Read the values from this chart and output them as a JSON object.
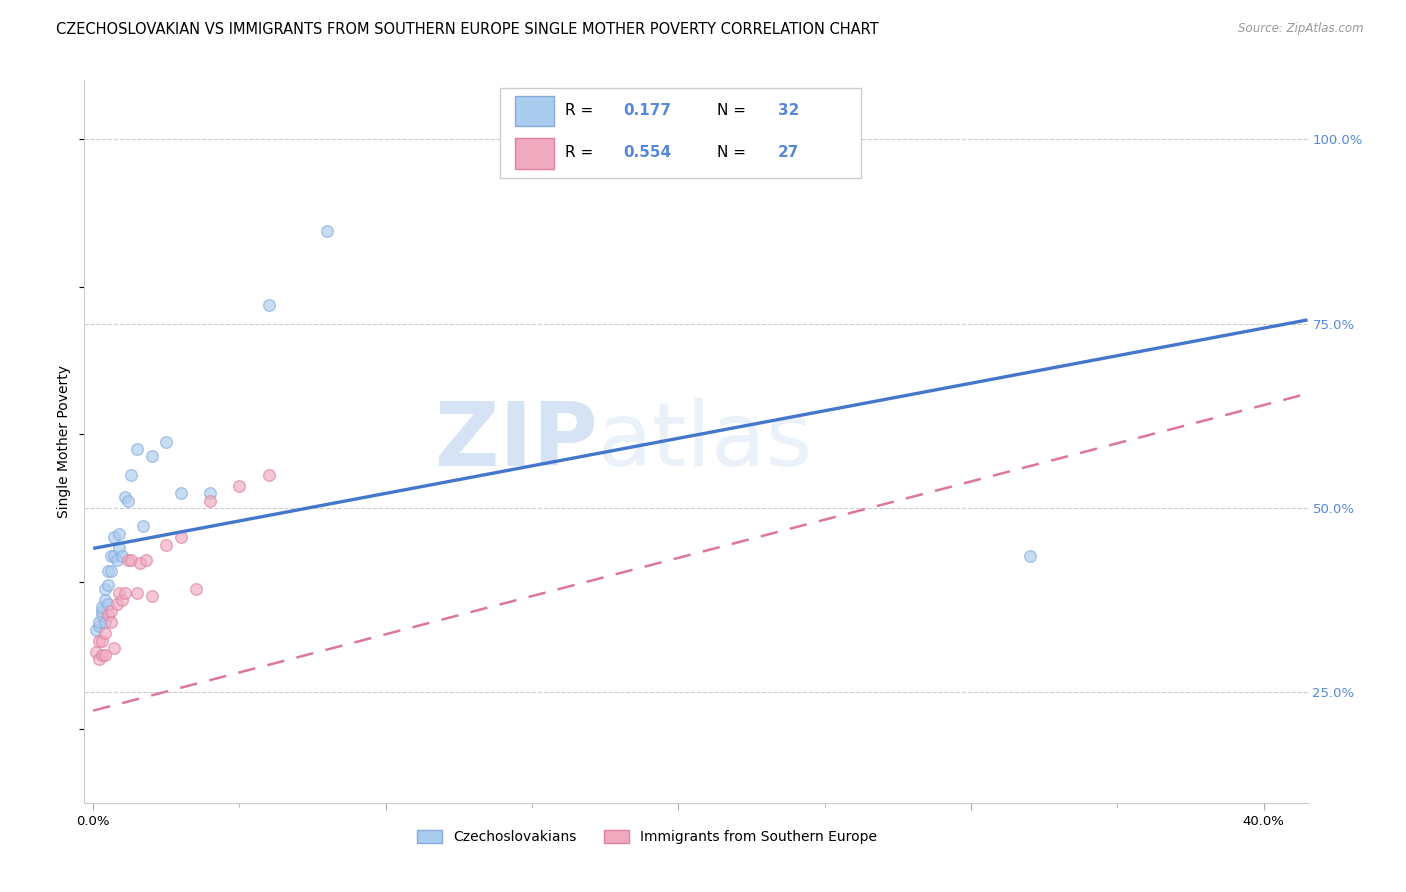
{
  "title": "CZECHOSLOVAKIAN VS IMMIGRANTS FROM SOUTHERN EUROPE SINGLE MOTHER POVERTY CORRELATION CHART",
  "source": "Source: ZipAtlas.com",
  "ylabel": "Single Mother Poverty",
  "xlim": [
    -0.003,
    0.415
  ],
  "ylim": [
    0.1,
    1.08
  ],
  "xlabel_tick_vals": [
    0.0,
    0.1,
    0.2,
    0.3,
    0.4
  ],
  "xlabel_tick_labels": [
    "0.0%",
    "",
    "",
    "",
    "40.0%"
  ],
  "ylabel_tick_vals": [
    0.25,
    0.5,
    0.75,
    1.0
  ],
  "ylabel_tick_labels": [
    "25.0%",
    "50.0%",
    "75.0%",
    "100.0%"
  ],
  "blue_r": 0.177,
  "blue_n": 32,
  "pink_r": 0.554,
  "pink_n": 27,
  "blue_color": "#aaccee",
  "pink_color": "#f0aabf",
  "blue_edge_color": "#88aadd",
  "pink_edge_color": "#e080a0",
  "blue_line_color": "#4477cc",
  "pink_line_color": "#dd7799",
  "watermark_zip_color": "#c5d8f0",
  "watermark_atlas_color": "#c5d8f0",
  "legend_label_blue": "Czechoslovakians",
  "legend_label_pink": "Immigrants from Southern Europe",
  "grid_color": "#cccccc",
  "right_tick_color": "#5588dd",
  "blue_x": [
    0.001,
    0.002,
    0.002,
    0.003,
    0.003,
    0.003,
    0.004,
    0.004,
    0.004,
    0.005,
    0.005,
    0.005,
    0.006,
    0.006,
    0.007,
    0.007,
    0.008,
    0.009,
    0.009,
    0.01,
    0.011,
    0.012,
    0.013,
    0.015,
    0.017,
    0.02,
    0.025,
    0.03,
    0.04,
    0.06,
    0.08,
    0.32
  ],
  "blue_y": [
    0.335,
    0.34,
    0.345,
    0.355,
    0.36,
    0.365,
    0.345,
    0.375,
    0.39,
    0.37,
    0.395,
    0.415,
    0.415,
    0.435,
    0.435,
    0.46,
    0.43,
    0.445,
    0.465,
    0.435,
    0.515,
    0.51,
    0.545,
    0.58,
    0.475,
    0.57,
    0.59,
    0.52,
    0.52,
    0.775,
    0.875,
    0.435
  ],
  "pink_x": [
    0.001,
    0.002,
    0.002,
    0.003,
    0.003,
    0.004,
    0.004,
    0.005,
    0.006,
    0.006,
    0.007,
    0.008,
    0.009,
    0.01,
    0.011,
    0.012,
    0.013,
    0.015,
    0.016,
    0.018,
    0.02,
    0.025,
    0.03,
    0.035,
    0.04,
    0.05,
    0.06
  ],
  "pink_y": [
    0.305,
    0.295,
    0.32,
    0.3,
    0.32,
    0.3,
    0.33,
    0.355,
    0.345,
    0.36,
    0.31,
    0.37,
    0.385,
    0.375,
    0.385,
    0.43,
    0.43,
    0.385,
    0.425,
    0.43,
    0.38,
    0.45,
    0.46,
    0.39,
    0.51,
    0.53,
    0.545
  ],
  "blue_line_x0": 0.0,
  "blue_line_y0": 0.445,
  "blue_line_x1": 0.415,
  "blue_line_y1": 0.755,
  "pink_line_x0": 0.0,
  "pink_line_y0": 0.225,
  "pink_line_x1": 0.415,
  "pink_line_y1": 0.655,
  "scatter_size": 70,
  "scatter_alpha": 0.65,
  "scatter_lw": 1.0
}
